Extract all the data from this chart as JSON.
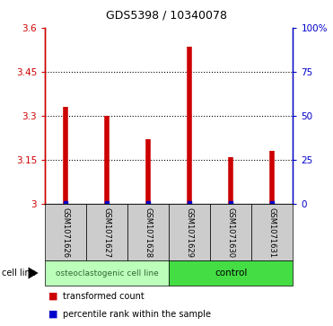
{
  "title": "GDS5398 / 10340078",
  "samples": [
    "GSM1071626",
    "GSM1071627",
    "GSM1071628",
    "GSM1071629",
    "GSM1071630",
    "GSM1071631"
  ],
  "red_values": [
    3.33,
    3.3,
    3.22,
    3.535,
    3.16,
    3.18
  ],
  "ylim": [
    3.0,
    3.6
  ],
  "yticks_left": [
    3.0,
    3.15,
    3.3,
    3.45,
    3.6
  ],
  "yticks_right": [
    0,
    25,
    50,
    75,
    100
  ],
  "ytick_labels_left": [
    "3",
    "3.15",
    "3.3",
    "3.45",
    "3.6"
  ],
  "ytick_labels_right": [
    "0",
    "25",
    "50",
    "75",
    "100%"
  ],
  "grid_ticks": [
    3.15,
    3.3,
    3.45
  ],
  "bar_color": "#cc0000",
  "blue_color": "#0000cc",
  "group1_label": "osteoclastogenic cell line",
  "group2_label": "control",
  "group1_color": "#bbffbb",
  "group2_color": "#44dd44",
  "sample_box_color": "#cccccc",
  "legend_red_label": "transformed count",
  "legend_blue_label": "percentile rank within the sample",
  "cell_line_label": "cell line",
  "title_fontsize": 9,
  "tick_fontsize": 7.5,
  "sample_fontsize": 6,
  "group_fontsize": 6.5,
  "legend_fontsize": 7
}
